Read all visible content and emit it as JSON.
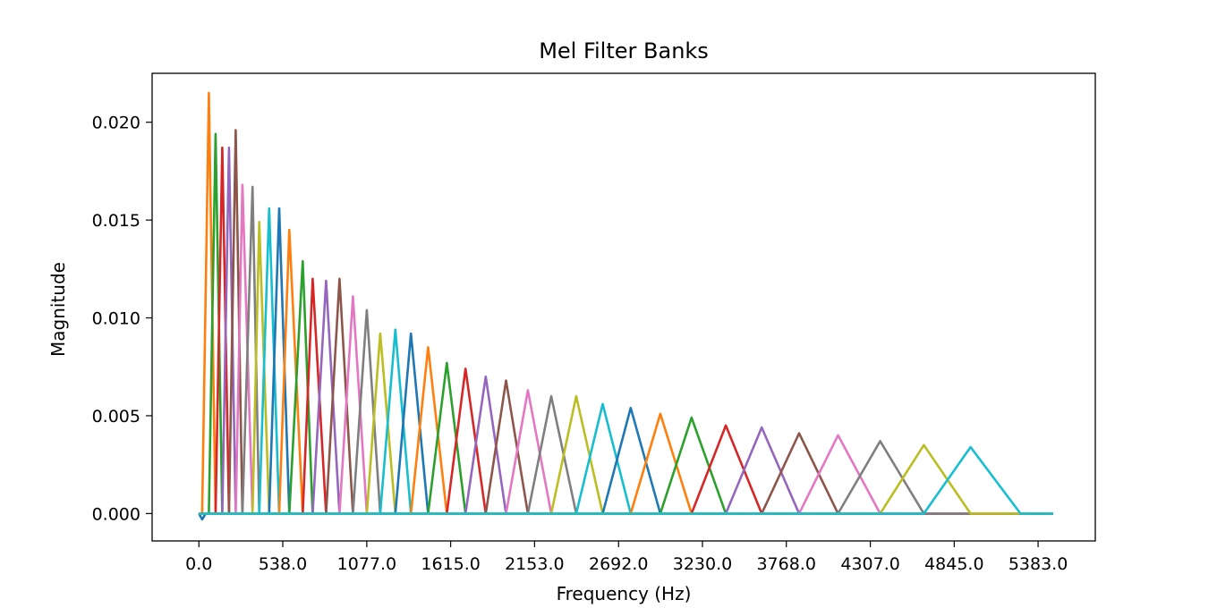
{
  "chart_data": {
    "type": "line",
    "title": "Mel Filter Banks",
    "xlabel": "Frequency (Hz)",
    "ylabel": "Magnitude",
    "xlim": [
      -300,
      5750
    ],
    "ylim": [
      -0.0014,
      0.0225
    ],
    "x_ticks": [
      0.0,
      538.0,
      1077.0,
      1615.0,
      2153.0,
      2692.0,
      3230.0,
      3768.0,
      4307.0,
      4845.0,
      5383.0
    ],
    "x_tick_labels": [
      "0.0",
      "538.0",
      "1077.0",
      "1615.0",
      "2153.0",
      "2692.0",
      "3230.0",
      "3768.0",
      "4307.0",
      "4845.0",
      "5383.0"
    ],
    "y_ticks": [
      0.0,
      0.005,
      0.01,
      0.015,
      0.02
    ],
    "y_tick_labels": [
      "0.000",
      "0.005",
      "0.010",
      "0.015",
      "0.020"
    ],
    "x_max": 5480,
    "grid": false,
    "legend": "none",
    "colors": [
      "#1f77b4",
      "#ff7f0e",
      "#2ca02c",
      "#d62728",
      "#9467bd",
      "#8c564b",
      "#e377c2",
      "#7f7f7f",
      "#bcbd22",
      "#17becf"
    ],
    "filters": [
      {
        "start": 0,
        "peak": 21,
        "end": 43,
        "height": -0.0003
      },
      {
        "start": 21,
        "peak": 64,
        "end": 107,
        "height": 0.0215
      },
      {
        "start": 64,
        "peak": 107,
        "end": 150,
        "height": 0.0194
      },
      {
        "start": 107,
        "peak": 150,
        "end": 193,
        "height": 0.0187
      },
      {
        "start": 150,
        "peak": 193,
        "end": 236,
        "height": 0.0187
      },
      {
        "start": 193,
        "peak": 236,
        "end": 279,
        "height": 0.0196
      },
      {
        "start": 236,
        "peak": 279,
        "end": 344,
        "height": 0.0168
      },
      {
        "start": 279,
        "peak": 344,
        "end": 387,
        "height": 0.0167
      },
      {
        "start": 344,
        "peak": 387,
        "end": 451,
        "height": 0.0149
      },
      {
        "start": 387,
        "peak": 451,
        "end": 515,
        "height": 0.0156
      },
      {
        "start": 451,
        "peak": 515,
        "end": 580,
        "height": 0.0156
      },
      {
        "start": 515,
        "peak": 580,
        "end": 666,
        "height": 0.0145
      },
      {
        "start": 580,
        "peak": 666,
        "end": 730,
        "height": 0.0129
      },
      {
        "start": 666,
        "peak": 730,
        "end": 816,
        "height": 0.012
      },
      {
        "start": 730,
        "peak": 816,
        "end": 902,
        "height": 0.0119
      },
      {
        "start": 816,
        "peak": 902,
        "end": 988,
        "height": 0.012
      },
      {
        "start": 902,
        "peak": 988,
        "end": 1077,
        "height": 0.0111
      },
      {
        "start": 988,
        "peak": 1077,
        "end": 1163,
        "height": 0.0104
      },
      {
        "start": 1077,
        "peak": 1163,
        "end": 1260,
        "height": 0.0092
      },
      {
        "start": 1163,
        "peak": 1260,
        "end": 1360,
        "height": 0.0094
      },
      {
        "start": 1260,
        "peak": 1360,
        "end": 1470,
        "height": 0.0092
      },
      {
        "start": 1360,
        "peak": 1470,
        "end": 1590,
        "height": 0.0085
      },
      {
        "start": 1470,
        "peak": 1590,
        "end": 1710,
        "height": 0.0077
      },
      {
        "start": 1590,
        "peak": 1710,
        "end": 1840,
        "height": 0.0074
      },
      {
        "start": 1710,
        "peak": 1840,
        "end": 1970,
        "height": 0.007
      },
      {
        "start": 1840,
        "peak": 1970,
        "end": 2110,
        "height": 0.0068
      },
      {
        "start": 1970,
        "peak": 2110,
        "end": 2260,
        "height": 0.0063
      },
      {
        "start": 2110,
        "peak": 2260,
        "end": 2420,
        "height": 0.006
      },
      {
        "start": 2260,
        "peak": 2420,
        "end": 2590,
        "height": 0.006
      },
      {
        "start": 2420,
        "peak": 2590,
        "end": 2770,
        "height": 0.0056
      },
      {
        "start": 2590,
        "peak": 2770,
        "end": 2960,
        "height": 0.0054
      },
      {
        "start": 2770,
        "peak": 2960,
        "end": 3160,
        "height": 0.0051
      },
      {
        "start": 2960,
        "peak": 3160,
        "end": 3380,
        "height": 0.0049
      },
      {
        "start": 3160,
        "peak": 3380,
        "end": 3610,
        "height": 0.0045
      },
      {
        "start": 3380,
        "peak": 3610,
        "end": 3850,
        "height": 0.0044
      },
      {
        "start": 3610,
        "peak": 3850,
        "end": 4100,
        "height": 0.0041
      },
      {
        "start": 3850,
        "peak": 4100,
        "end": 4370,
        "height": 0.004
      },
      {
        "start": 4100,
        "peak": 4370,
        "end": 4650,
        "height": 0.0037
      },
      {
        "start": 4370,
        "peak": 4650,
        "end": 4950,
        "height": 0.0035
      },
      {
        "start": 4650,
        "peak": 4950,
        "end": 5270,
        "height": 0.0034
      }
    ]
  }
}
